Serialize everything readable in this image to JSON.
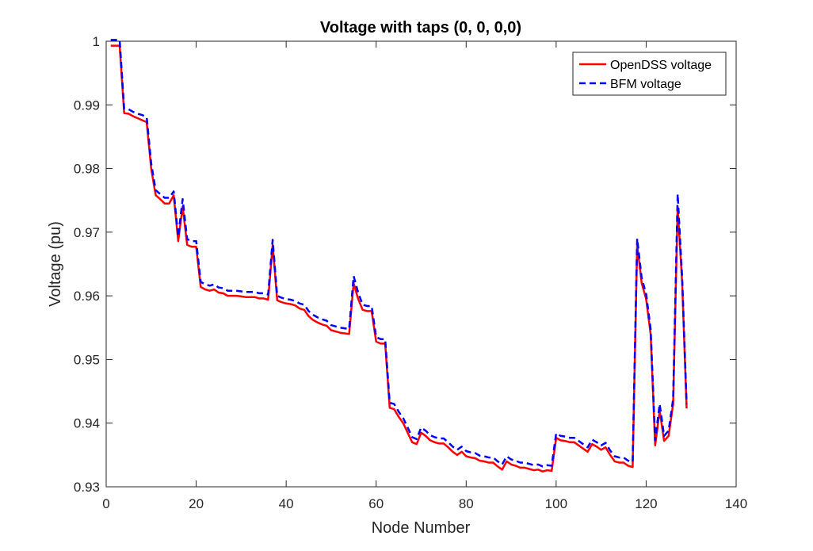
{
  "chart_data": {
    "type": "line",
    "title": "Voltage with taps (0, 0, 0,0)",
    "xlabel": "Node Number",
    "ylabel": "Voltage (pu)",
    "xlim": [
      0,
      140
    ],
    "ylim": [
      0.93,
      1.0
    ],
    "xticks": [
      "0",
      "20",
      "40",
      "60",
      "80",
      "100",
      "120",
      "140"
    ],
    "yticks": [
      "0.93",
      "0.94",
      "0.95",
      "0.96",
      "0.97",
      "0.98",
      "0.99",
      "1"
    ],
    "grid": false,
    "legend_location": "top-right",
    "series": [
      {
        "name": "OpenDSS voltage",
        "color": "#ff0000",
        "style": "solid",
        "x": [
          1,
          3,
          4,
          5,
          6,
          7,
          8,
          9,
          10,
          11,
          12,
          13,
          14,
          15,
          16,
          17,
          18,
          19,
          20,
          21,
          22,
          23,
          24,
          25,
          26,
          27,
          28,
          29,
          30,
          31,
          32,
          33,
          34,
          35,
          36,
          37,
          38,
          39,
          40,
          41,
          42,
          43,
          44,
          45,
          46,
          47,
          48,
          49,
          50,
          51,
          52,
          53,
          54,
          55,
          56,
          57,
          58,
          59,
          60,
          61,
          62,
          63,
          64,
          65,
          66,
          67,
          68,
          69,
          70,
          71,
          72,
          73,
          74,
          75,
          76,
          77,
          78,
          79,
          80,
          81,
          82,
          83,
          84,
          85,
          86,
          87,
          88,
          89,
          90,
          91,
          92,
          93,
          94,
          95,
          96,
          97,
          98,
          99,
          100,
          101,
          102,
          103,
          104,
          105,
          106,
          107,
          108,
          109,
          110,
          111,
          112,
          113,
          114,
          115,
          116,
          117,
          118,
          119,
          120,
          121,
          122,
          123,
          124,
          125,
          126,
          127,
          128,
          129
        ],
        "y": [
          0.9993,
          0.9993,
          0.9887,
          0.9886,
          0.9882,
          0.9879,
          0.9876,
          0.9873,
          0.98,
          0.9758,
          0.9752,
          0.9745,
          0.9745,
          0.9758,
          0.9686,
          0.974,
          0.968,
          0.9677,
          0.9677,
          0.9614,
          0.961,
          0.9608,
          0.961,
          0.9605,
          0.9604,
          0.96,
          0.96,
          0.96,
          0.9599,
          0.9598,
          0.9598,
          0.9598,
          0.9596,
          0.9596,
          0.9594,
          0.968,
          0.9593,
          0.959,
          0.9588,
          0.9587,
          0.9585,
          0.958,
          0.9578,
          0.9568,
          0.9562,
          0.9558,
          0.9555,
          0.9553,
          0.9546,
          0.9544,
          0.9542,
          0.9541,
          0.954,
          0.962,
          0.9595,
          0.9578,
          0.9576,
          0.9576,
          0.9528,
          0.9525,
          0.9525,
          0.9424,
          0.9422,
          0.941,
          0.94,
          0.9385,
          0.937,
          0.9367,
          0.9385,
          0.938,
          0.9373,
          0.937,
          0.9368,
          0.9368,
          0.9362,
          0.9355,
          0.935,
          0.9355,
          0.9348,
          0.9346,
          0.9345,
          0.9341,
          0.934,
          0.9338,
          0.9338,
          0.9332,
          0.9327,
          0.934,
          0.9335,
          0.9333,
          0.933,
          0.933,
          0.9328,
          0.9326,
          0.9327,
          0.9324,
          0.9326,
          0.9325,
          0.9377,
          0.9373,
          0.9372,
          0.937,
          0.937,
          0.9365,
          0.936,
          0.9355,
          0.9367,
          0.9363,
          0.9358,
          0.9362,
          0.935,
          0.934,
          0.9338,
          0.9338,
          0.9333,
          0.9331,
          0.968,
          0.962,
          0.9595,
          0.954,
          0.9365,
          0.942,
          0.9372,
          0.938,
          0.943,
          0.974,
          0.962,
          0.9423
        ]
      },
      {
        "name": "BFM voltage",
        "color": "#0000ff",
        "style": "dashed",
        "x": [
          1,
          3,
          4,
          5,
          6,
          7,
          8,
          9,
          10,
          11,
          12,
          13,
          14,
          15,
          16,
          17,
          18,
          19,
          20,
          21,
          22,
          23,
          24,
          25,
          26,
          27,
          28,
          29,
          30,
          31,
          32,
          33,
          34,
          35,
          36,
          37,
          38,
          39,
          40,
          41,
          42,
          43,
          44,
          45,
          46,
          47,
          48,
          49,
          50,
          51,
          52,
          53,
          54,
          55,
          56,
          57,
          58,
          59,
          60,
          61,
          62,
          63,
          64,
          65,
          66,
          67,
          68,
          69,
          70,
          71,
          72,
          73,
          74,
          75,
          76,
          77,
          78,
          79,
          80,
          81,
          82,
          83,
          84,
          85,
          86,
          87,
          88,
          89,
          90,
          91,
          92,
          93,
          94,
          95,
          96,
          97,
          98,
          99,
          100,
          101,
          102,
          103,
          104,
          105,
          106,
          107,
          108,
          109,
          110,
          111,
          112,
          113,
          114,
          115,
          116,
          117,
          118,
          119,
          120,
          121,
          122,
          123,
          124,
          125,
          126,
          127,
          128,
          129
        ],
        "y": [
          1.0002,
          1.0002,
          0.9894,
          0.9893,
          0.9889,
          0.9886,
          0.9884,
          0.9881,
          0.9808,
          0.9766,
          0.976,
          0.9754,
          0.9754,
          0.9764,
          0.9693,
          0.9752,
          0.9689,
          0.9686,
          0.9686,
          0.9622,
          0.9618,
          0.9616,
          0.9618,
          0.9613,
          0.9612,
          0.9608,
          0.9608,
          0.9608,
          0.9607,
          0.9606,
          0.9606,
          0.9606,
          0.9604,
          0.9604,
          0.9602,
          0.9688,
          0.96,
          0.9597,
          0.9595,
          0.9594,
          0.9592,
          0.9588,
          0.9586,
          0.9576,
          0.957,
          0.9566,
          0.9563,
          0.9561,
          0.9554,
          0.9552,
          0.955,
          0.9549,
          0.9548,
          0.9631,
          0.9605,
          0.9586,
          0.9584,
          0.9584,
          0.9535,
          0.9532,
          0.9532,
          0.9432,
          0.943,
          0.9418,
          0.9408,
          0.9393,
          0.9378,
          0.9375,
          0.9393,
          0.9388,
          0.9381,
          0.9378,
          0.9376,
          0.9376,
          0.937,
          0.9363,
          0.9358,
          0.9363,
          0.9356,
          0.9354,
          0.9353,
          0.9349,
          0.9348,
          0.9346,
          0.9346,
          0.934,
          0.9335,
          0.9348,
          0.9343,
          0.9341,
          0.9338,
          0.9338,
          0.9336,
          0.9334,
          0.9335,
          0.9332,
          0.9334,
          0.9333,
          0.9384,
          0.938,
          0.9379,
          0.9377,
          0.9377,
          0.9372,
          0.9367,
          0.9362,
          0.9374,
          0.937,
          0.9365,
          0.9369,
          0.9357,
          0.9348,
          0.9346,
          0.9346,
          0.9341,
          0.9339,
          0.969,
          0.9628,
          0.9603,
          0.9548,
          0.9373,
          0.943,
          0.938,
          0.9388,
          0.9438,
          0.976,
          0.9628,
          0.943
        ]
      }
    ]
  }
}
